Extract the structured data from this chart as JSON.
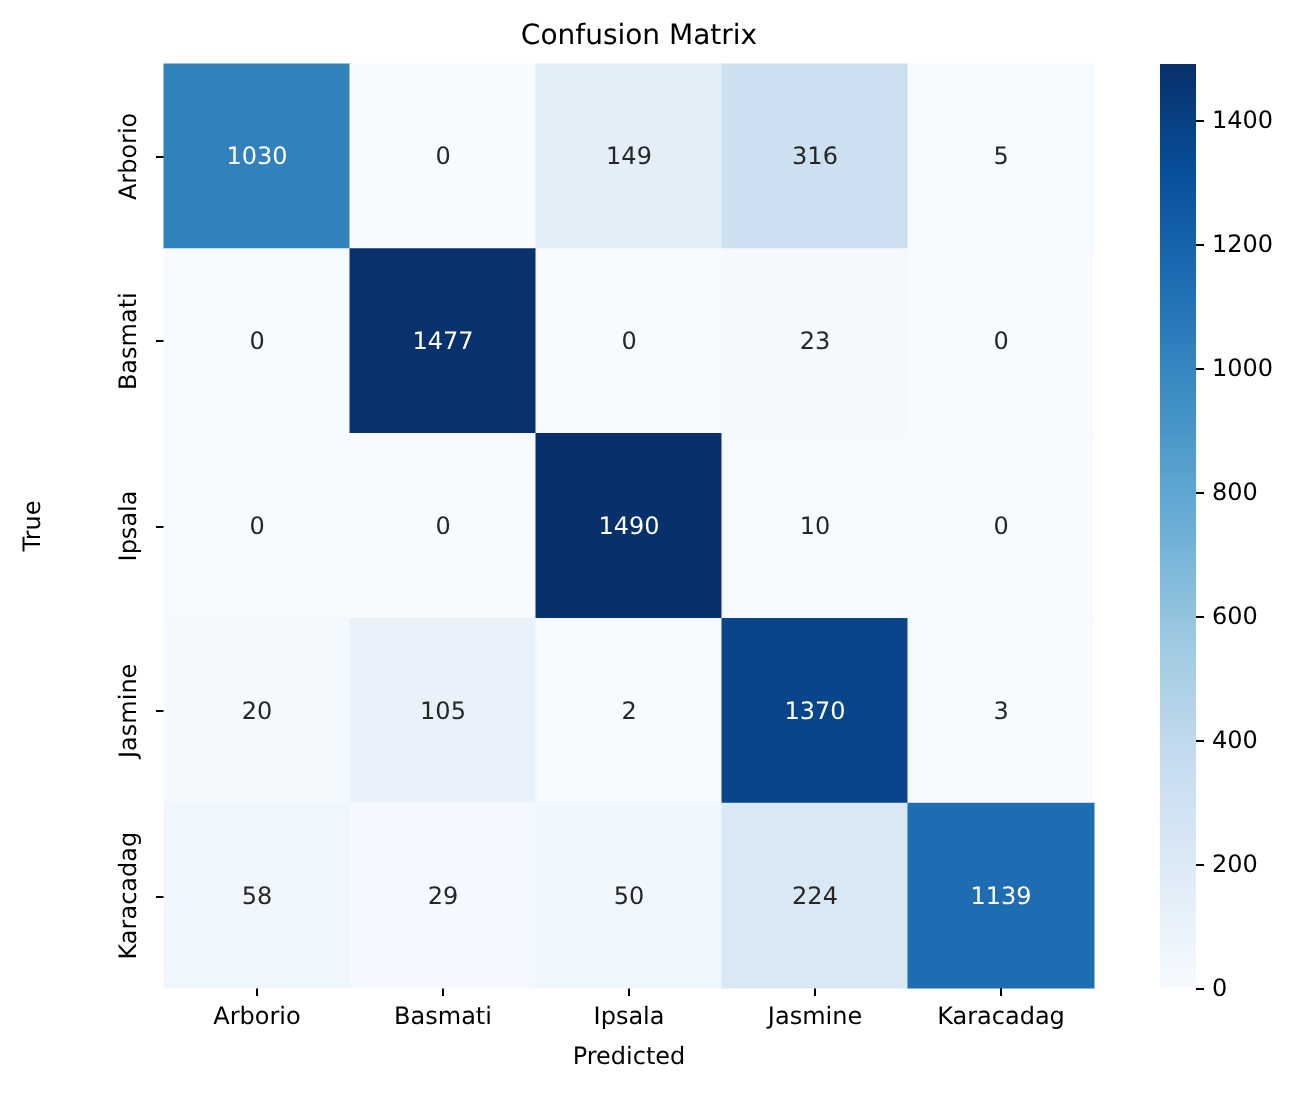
{
  "chart_data": {
    "type": "heatmap",
    "title": "Confusion Matrix",
    "xlabel": "Predicted",
    "ylabel": "True",
    "categories": [
      "Arborio",
      "Basmati",
      "Ipsala",
      "Jasmine",
      "Karacadag"
    ],
    "y_categories": [
      "Arborio",
      "Basmati",
      "Ipsala",
      "Jasmine",
      "Karacadag"
    ],
    "cells": [
      [
        1030,
        0,
        149,
        316,
        5
      ],
      [
        0,
        1477,
        0,
        23,
        0
      ],
      [
        0,
        0,
        1490,
        10,
        0
      ],
      [
        20,
        105,
        2,
        1370,
        3
      ],
      [
        58,
        29,
        50,
        224,
        1139
      ]
    ],
    "clim": [
      0,
      1490
    ],
    "cticks": [
      0,
      200,
      400,
      600,
      800,
      1000,
      1200,
      1400
    ],
    "data_labels": true
  }
}
